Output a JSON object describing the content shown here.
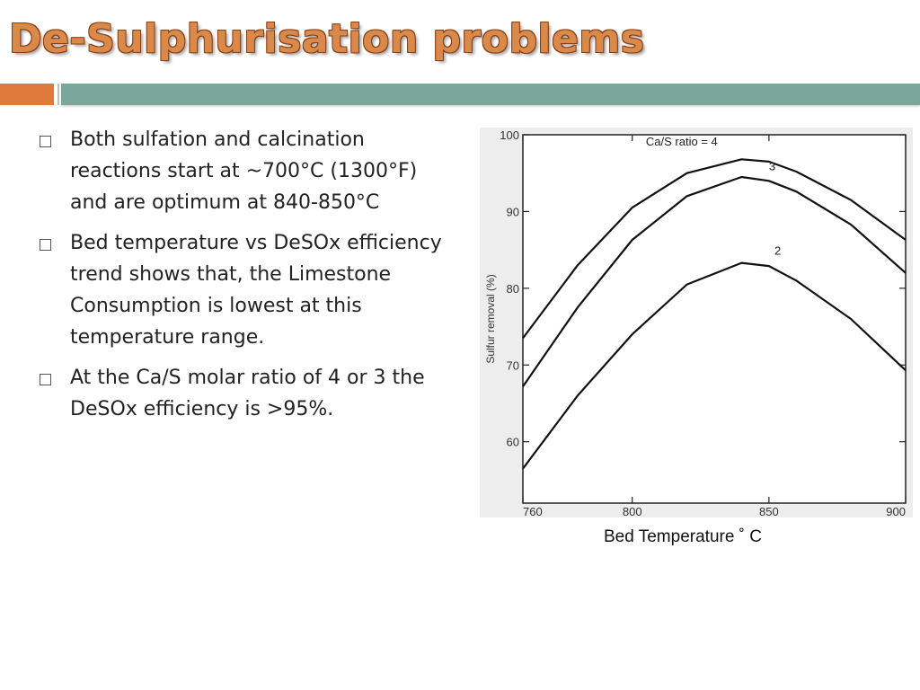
{
  "slide": {
    "title": "De-Sulphurisation problems",
    "colors": {
      "title": "#d98a4a",
      "accent": "#e07a3c",
      "bar": "#7ba69b"
    }
  },
  "bullets": [
    {
      "text": "Both sulfation and calcination reactions start at ~700°C (1300°F) and are optimum at 840-850°C"
    },
    {
      "text": "Bed temperature vs DeSOx efficiency trend shows that, the Limestone Consumption is lowest at this temperature range."
    },
    {
      "text": "At the Ca/S molar ratio of 4 or 3 the DeSOx efficiency is >95%."
    }
  ],
  "figure_caption": "Bed Temperature ˚ C",
  "chart_data": {
    "type": "line",
    "xlabel": "",
    "ylabel": "Sulfur removal (%)",
    "xlim": [
      760,
      900
    ],
    "ylim": [
      52,
      100
    ],
    "xticks": [
      760,
      800,
      850,
      900
    ],
    "yticks": [
      60,
      70,
      80,
      90,
      100
    ],
    "series": [
      {
        "name": "Ca/S ratio = 4",
        "x": [
          760,
          780,
          800,
          820,
          840,
          850,
          860,
          880,
          900
        ],
        "y": [
          73.5,
          83,
          90.5,
          95,
          96.8,
          96.5,
          95.2,
          91.5,
          86.3
        ]
      },
      {
        "name": "3",
        "x": [
          760,
          780,
          800,
          820,
          840,
          850,
          860,
          880,
          900
        ],
        "y": [
          67.2,
          77.5,
          86.3,
          92,
          94.5,
          94,
          92.6,
          88.3,
          82
        ]
      },
      {
        "name": "2",
        "x": [
          760,
          780,
          800,
          820,
          840,
          850,
          860,
          880,
          900
        ],
        "y": [
          56.5,
          66,
          74,
          80.5,
          83.3,
          82.9,
          81,
          76,
          69.3
        ]
      }
    ]
  }
}
